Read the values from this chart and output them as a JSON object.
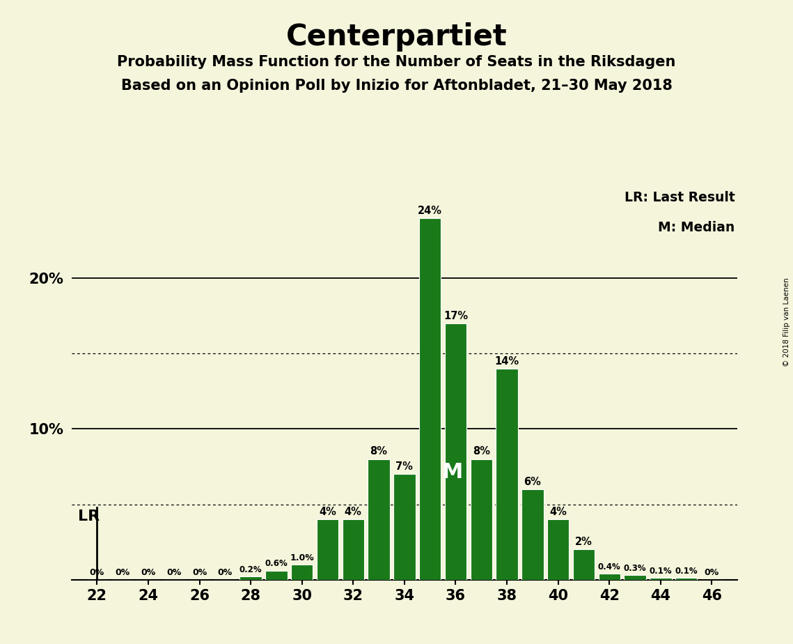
{
  "title": "Centerpartiet",
  "subtitle1": "Probability Mass Function for the Number of Seats in the Riksdagen",
  "subtitle2": "Based on an Opinion Poll by Inizio for Aftonbladet, 21–30 May 2018",
  "copyright": "© 2018 Filip van Laenen",
  "legend_lr": "LR: Last Result",
  "legend_m": "M: Median",
  "seats": [
    22,
    23,
    24,
    25,
    26,
    27,
    28,
    29,
    30,
    31,
    32,
    33,
    34,
    35,
    36,
    37,
    38,
    39,
    40,
    41,
    42,
    43,
    44,
    45,
    46
  ],
  "probabilities": [
    0.0,
    0.0,
    0.0,
    0.0,
    0.0,
    0.0,
    0.2,
    0.6,
    1.0,
    4.0,
    4.0,
    8.0,
    7.0,
    24.0,
    17.0,
    8.0,
    14.0,
    6.0,
    4.0,
    2.0,
    0.4,
    0.3,
    0.1,
    0.1,
    0.0
  ],
  "bar_color": "#1a7a1a",
  "background_color": "#f5f5dc",
  "lr_seat": 22,
  "median_seat": 36,
  "major_gridlines": [
    10,
    20
  ],
  "minor_gridlines": [
    5,
    15
  ],
  "xlim": [
    21.0,
    47.0
  ],
  "ylim": [
    0,
    26.5
  ],
  "title_fontsize": 30,
  "subtitle_fontsize": 15,
  "bar_label_fontsize": 11,
  "lr_label": "LR",
  "m_label": "M",
  "bar_width": 0.85
}
